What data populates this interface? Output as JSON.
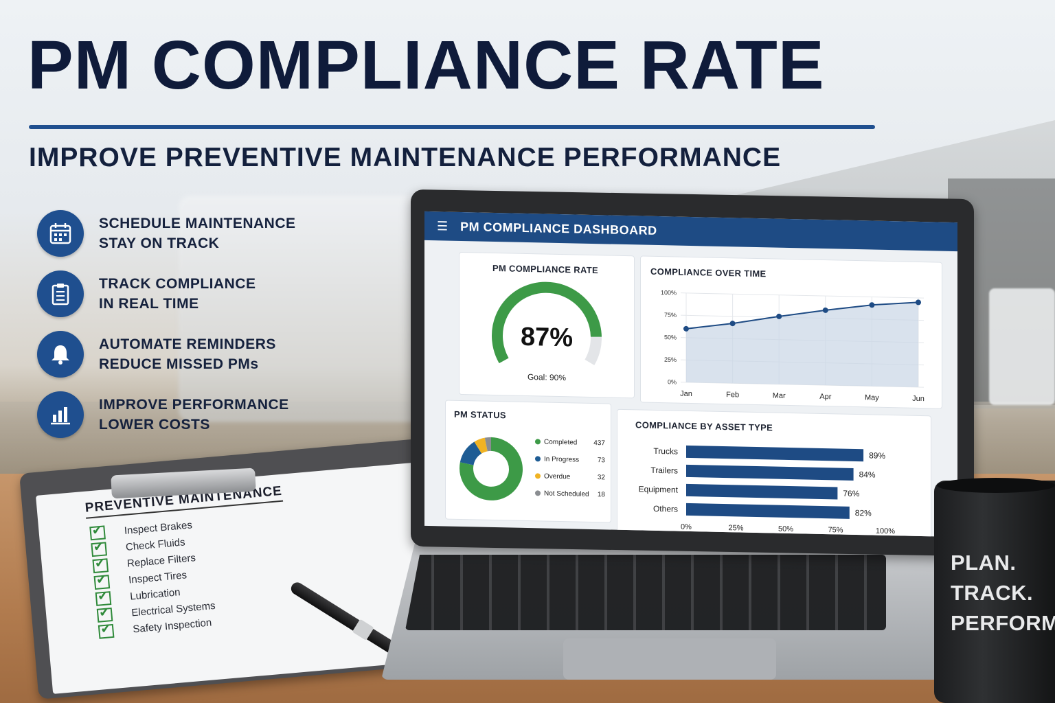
{
  "headline": {
    "title": "PM COMPLIANCE RATE",
    "subtitle": "IMPROVE PREVENTIVE MAINTENANCE PERFORMANCE"
  },
  "features": [
    {
      "icon": "calendar-icon",
      "line1": "SCHEDULE MAINTENANCE",
      "line2": "STAY ON TRACK"
    },
    {
      "icon": "clipboard-icon",
      "line1": "TRACK COMPLIANCE",
      "line2": "IN REAL TIME"
    },
    {
      "icon": "bell-icon",
      "line1": "AUTOMATE REMINDERS",
      "line2": "REDUCE MISSED PMs"
    },
    {
      "icon": "bar-chart-icon",
      "line1": "IMPROVE PERFORMANCE",
      "line2": "LOWER COSTS"
    }
  ],
  "clipboard": {
    "heading": "PREVENTIVE MAINTENANCE",
    "items": [
      "Inspect Brakes",
      "Check Fluids",
      "Replace Filters",
      "Inspect Tires",
      "Lubrication",
      "Electrical Systems",
      "Safety Inspection"
    ]
  },
  "dashboard": {
    "title": "PM COMPLIANCE DASHBOARD",
    "gauge": {
      "title": "PM COMPLIANCE RATE",
      "value_label": "87%",
      "value": 87,
      "goal_label": "Goal: 90%"
    },
    "line_title": "COMPLIANCE OVER TIME",
    "status_title": "PM STATUS",
    "bar_title": "COMPLIANCE BY ASSET TYPE"
  },
  "chart_data": [
    {
      "type": "line",
      "title": "COMPLIANCE OVER TIME",
      "x": [
        "Jan",
        "Feb",
        "Mar",
        "Apr",
        "May",
        "Jun"
      ],
      "series": [
        {
          "values": [
            60,
            67,
            76,
            84,
            91,
            95
          ]
        }
      ],
      "yticks": [
        "0%",
        "25%",
        "50%",
        "75%",
        "100%"
      ],
      "ylim": [
        0,
        100
      ],
      "grid": true
    },
    {
      "type": "pie",
      "title": "PM STATUS",
      "labels": [
        "Completed",
        "In Progress",
        "Overdue",
        "Not Scheduled"
      ],
      "values": [
        437,
        73,
        32,
        18
      ],
      "value_labels": [
        "437",
        "73",
        "32",
        "18"
      ],
      "colors": [
        "#3d9a47",
        "#1e5c94",
        "#f0b323",
        "#8a8d91"
      ]
    },
    {
      "type": "bar",
      "title": "COMPLIANCE BY ASSET TYPE",
      "categories": [
        "Trucks",
        "Trailers",
        "Equipment",
        "Others"
      ],
      "values": [
        89,
        84,
        76,
        82
      ],
      "value_labels": [
        "89%",
        "84%",
        "76%",
        "82%"
      ],
      "xticks": [
        "0%",
        "25%",
        "50%",
        "75%",
        "100%"
      ],
      "xlim": [
        0,
        100
      ],
      "color": "#1e4b84"
    }
  ],
  "mug": {
    "lines": [
      "PLAN.",
      "TRACK.",
      "PERFORM."
    ]
  },
  "colors": {
    "navy": "#0f1b3a",
    "accent": "#1f4f8f",
    "green": "#3d9a47"
  }
}
